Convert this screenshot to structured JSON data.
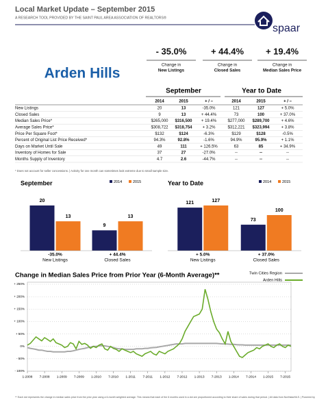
{
  "header": {
    "title": "Local Market Update – September 2015",
    "subtitle": "A RESEARCH TOOL PROVIDED BY THE SAINT PAUL AREA ASSOCIATION OF REALTORS®",
    "logo": "spaar"
  },
  "place": "Arden Hills",
  "summary": {
    "items": [
      {
        "value": "- 35.0%",
        "label_lines": [
          "Change in",
          "New Listings"
        ]
      },
      {
        "value": "+ 44.4%",
        "label_lines": [
          "Change in",
          "Closed Sales"
        ]
      },
      {
        "value": "+ 19.4%",
        "label_lines": [
          "Change in",
          "Median Sales Price"
        ]
      }
    ]
  },
  "table": {
    "group_headers": [
      "September",
      "Year to Date"
    ],
    "columns": [
      "2014",
      "2015",
      "+ / –",
      "2014",
      "2015",
      "+ / –"
    ],
    "rows": [
      {
        "label": "New Listings",
        "cells": [
          "20",
          "13",
          "-35.0%",
          "121",
          "127",
          "+ 5.0%"
        ]
      },
      {
        "label": "Closed Sales",
        "cells": [
          "9",
          "13",
          "+ 44.4%",
          "73",
          "100",
          "+ 37.0%"
        ]
      },
      {
        "label": "Median Sales Price*",
        "cells": [
          "$265,000",
          "$316,500",
          "+ 19.4%",
          "$277,000",
          "$289,700",
          "+ 4.6%"
        ]
      },
      {
        "label": "Average Sales Price*",
        "cells": [
          "$308,722",
          "$318,754",
          "+ 3.2%",
          "$312,221",
          "$323,994",
          "+ 3.8%"
        ]
      },
      {
        "label": "Price Per Square Foot*",
        "cells": [
          "$132",
          "$124",
          "-6.3%",
          "$129",
          "$128",
          "-0.5%"
        ]
      },
      {
        "label": "Percent of Original List Price Received*",
        "cells": [
          "94.3%",
          "92.8%",
          "-1.6%",
          "94.9%",
          "95.9%",
          "+ 1.1%"
        ]
      },
      {
        "label": "Days on Market Until Sale",
        "cells": [
          "49",
          "111",
          "+ 126.5%",
          "63",
          "85",
          "+ 34.9%"
        ]
      },
      {
        "label": "Inventory of Homes for Sale",
        "cells": [
          "37",
          "27",
          "-27.0%",
          "--",
          "--",
          "--"
        ]
      },
      {
        "label": "Months Supply of Inventory",
        "cells": [
          "4.7",
          "2.6",
          "-44.7%",
          "--",
          "--",
          "--"
        ]
      }
    ],
    "footnote": "* Does not account for seller concessions.  |  Activity for one month can sometimes look extreme due to small sample size."
  },
  "chart_data": [
    {
      "type": "bar",
      "title": "September",
      "categories": [
        "New Listings",
        "Closed Sales"
      ],
      "series": [
        {
          "name": "2014",
          "color": "#1b1f5c",
          "values": [
            20,
            9
          ]
        },
        {
          "name": "2015",
          "color": "#f07b22",
          "values": [
            13,
            13
          ]
        }
      ],
      "category_notes": [
        "-35.0%",
        "+ 44.4%"
      ],
      "legend": "upper right"
    },
    {
      "type": "bar",
      "title": "Year to Date",
      "categories": [
        "New Listings",
        "Closed Sales"
      ],
      "series": [
        {
          "name": "2014",
          "color": "#1b1f5c",
          "values": [
            121,
            73
          ]
        },
        {
          "name": "2015",
          "color": "#f07b22",
          "values": [
            127,
            100
          ]
        }
      ],
      "category_notes": [
        "+ 5.0%",
        "+ 37.0%"
      ],
      "legend": "upper right"
    },
    {
      "type": "line",
      "title": "Change in Median Sales Price from Prior Year (6-Month Average)**",
      "x": [
        "1-2008",
        null,
        null,
        null,
        null,
        null,
        "7-2008",
        null,
        null,
        null,
        null,
        null,
        "1-2009",
        null,
        null,
        null,
        null,
        null,
        "7-2009",
        null,
        null,
        null,
        null,
        null,
        "1-2010",
        null,
        null,
        null,
        null,
        null,
        "7-2010",
        null,
        null,
        null,
        null,
        null,
        "1-2011",
        null,
        null,
        null,
        null,
        null,
        "7-2011",
        null,
        null,
        null,
        null,
        null,
        "1-2012",
        null,
        null,
        null,
        null,
        null,
        "7-2012",
        null,
        null,
        null,
        null,
        null,
        "1-2013",
        null,
        null,
        null,
        null,
        null,
        "7-2013",
        null,
        null,
        null,
        null,
        null,
        "1-2014",
        null,
        null,
        null,
        null,
        null,
        "7-2014",
        null,
        null,
        null,
        null,
        null,
        "1-2015",
        null,
        null,
        null,
        null,
        null,
        "7-2015",
        null,
        null
      ],
      "series": [
        {
          "name": "Twin Cities Region",
          "color": "#a8a8a8",
          "values": [
            -5,
            -8,
            -10,
            -12,
            -15,
            -15,
            -18,
            -20,
            -20,
            -22,
            -22,
            -22,
            -22,
            -22,
            -20,
            -20,
            -18,
            -15,
            -12,
            -10,
            -8,
            -5,
            -3,
            0,
            0,
            2,
            3,
            2,
            0,
            -2,
            -5,
            -8,
            -10,
            -10,
            -12,
            -12,
            -12,
            -12,
            -10,
            -10,
            -10,
            -8,
            -8,
            -6,
            -5,
            -4,
            -2,
            0,
            2,
            4,
            6,
            8,
            10,
            10,
            10,
            12,
            12,
            12,
            12,
            12,
            12,
            12,
            12,
            12,
            12,
            12,
            12,
            11,
            10,
            10,
            9,
            8,
            8,
            7,
            6,
            6,
            5,
            5,
            5,
            5,
            5,
            5,
            5,
            5,
            5,
            5,
            5,
            5,
            5,
            5,
            5,
            5,
            5
          ]
        },
        {
          "name": "Arden Hills",
          "color": "#6aab2a",
          "values": [
            5,
            12,
            25,
            38,
            30,
            22,
            35,
            28,
            20,
            30,
            15,
            10,
            5,
            -5,
            0,
            15,
            10,
            -10,
            20,
            8,
            12,
            5,
            -8,
            0,
            -5,
            5,
            10,
            -10,
            -15,
            0,
            -8,
            -12,
            -20,
            -10,
            -15,
            -20,
            -25,
            -20,
            -30,
            -35,
            -40,
            -30,
            -25,
            -20,
            -30,
            -35,
            -20,
            -25,
            -30,
            -20,
            -15,
            -10,
            0,
            10,
            30,
            60,
            80,
            100,
            120,
            125,
            130,
            150,
            230,
            190,
            140,
            100,
            70,
            55,
            30,
            10,
            60,
            20,
            0,
            -20,
            -40,
            -45,
            -35,
            -25,
            -20,
            -15,
            -5,
            -10,
            0,
            5,
            10,
            0,
            -5,
            5,
            10,
            0,
            -5,
            5,
            0
          ]
        }
      ],
      "ylim": [
        -100,
        250
      ],
      "yticks": [
        {
          "value": 250,
          "label": "+ 250%"
        },
        {
          "value": 200,
          "label": "+ 200%"
        },
        {
          "value": 150,
          "label": "+ 150%"
        },
        {
          "value": 100,
          "label": "+ 100%"
        },
        {
          "value": 50,
          "label": "+ 50%"
        },
        {
          "value": 0,
          "label": "0%"
        },
        {
          "value": -50,
          "label": "- 50%"
        },
        {
          "value": -100,
          "label": "- 100%"
        }
      ],
      "grid": true,
      "legend": "upper right"
    }
  ],
  "footnote": "** Each dot represents the change in median sales price from the prior year using a 6-month weighted average. This means that each of the 6 months used in a dot are proportioned according to their share of sales during that period.  |  All data from NorthstarMLS.  |  Powered by 10K Research and Marketing."
}
